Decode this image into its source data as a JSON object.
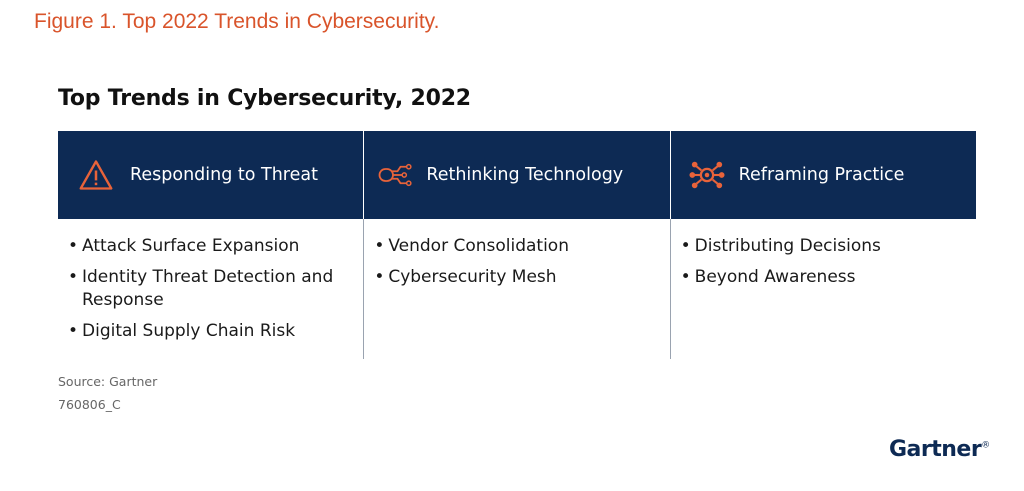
{
  "figure_title": "Figure 1. Top 2022 Trends in Cybersecurity.",
  "chart_title": "Top Trends in Cybersecurity, 2022",
  "columns": [
    {
      "heading": "Responding to Threat",
      "icon": "warning-triangle-icon",
      "items": [
        "Attack Surface Expansion",
        "Identity Threat Detection and Response",
        "Digital Supply Chain Risk"
      ]
    },
    {
      "heading": "Rethinking Technology",
      "icon": "circuit-icon",
      "items": [
        "Vendor Consolidation",
        "Cybersecurity Mesh"
      ]
    },
    {
      "heading": "Reframing Practice",
      "icon": "network-hub-icon",
      "items": [
        "Distributing Decisions",
        "Beyond Awareness"
      ]
    }
  ],
  "bullet": "•",
  "source": "Source: Gartner",
  "code": "760806_C",
  "logo": "Gartner",
  "colors": {
    "accent": "#d9542b",
    "header_bg": "#0d2a54",
    "header_text": "#ffffff"
  }
}
